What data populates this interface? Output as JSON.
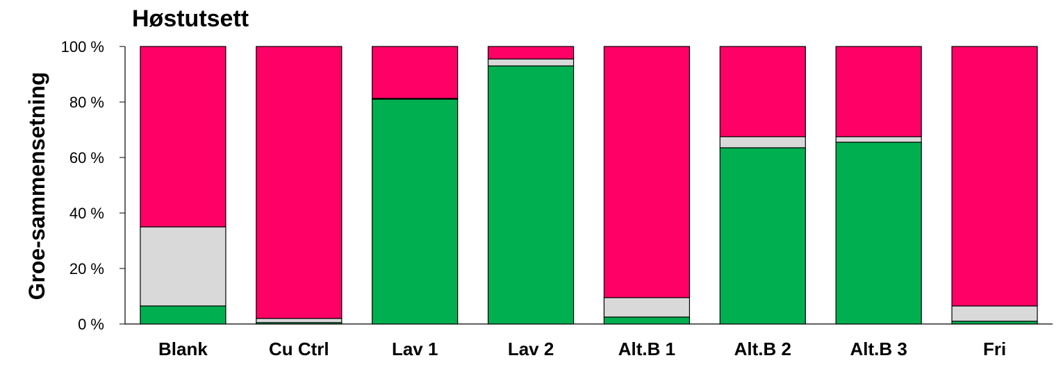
{
  "chart_data": {
    "type": "bar",
    "stacked": true,
    "percent": true,
    "title": "Høstutsett",
    "xlabel": "",
    "ylabel": "Groe-sammensetning",
    "ylim": [
      0,
      100
    ],
    "yticks": [
      "0 %",
      "20 %",
      "40 %",
      "60 %",
      "80 %",
      "100 %"
    ],
    "categories": [
      "Blank",
      "Cu Ctrl",
      "Lav 1",
      "Lav 2",
      "Alt.B 1",
      "Alt.B 2",
      "Alt.B 3",
      "Fri"
    ],
    "series": [
      {
        "color": "#00b050",
        "values": [
          6.5,
          0.5,
          81,
          93,
          2.5,
          63.5,
          65.5,
          1
        ]
      },
      {
        "color": "#d9d9d9",
        "values": [
          28.5,
          1.5,
          0.3,
          2.5,
          7,
          4,
          2,
          5.5
        ]
      },
      {
        "color": "#ff0066",
        "values": [
          65,
          98,
          18.7,
          4.5,
          90.5,
          32.5,
          32.5,
          93.5
        ]
      }
    ],
    "grid": false,
    "legend": "none"
  }
}
